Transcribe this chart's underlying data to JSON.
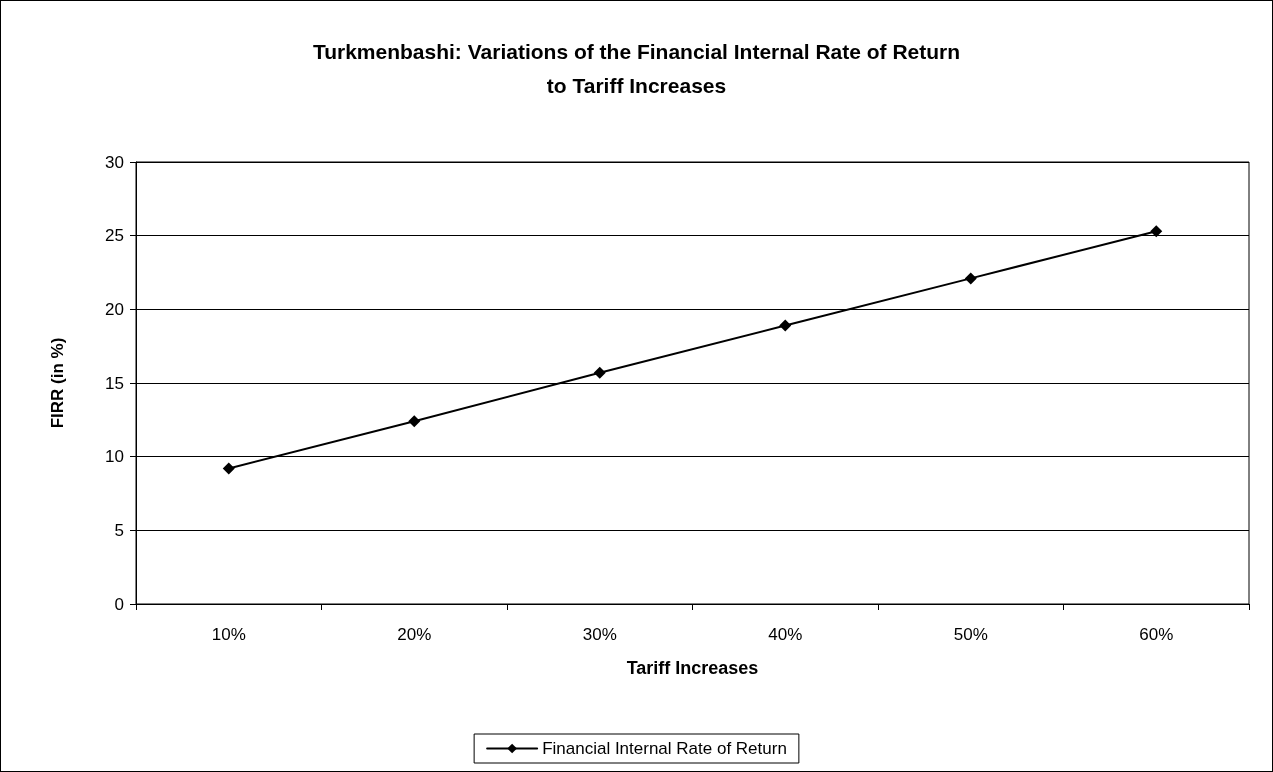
{
  "chart_data": {
    "type": "line",
    "title": "Turkmenbashi: Variations of the Financial Internal Rate of Return\nto Tariff Increases",
    "xlabel": "Tariff Increases",
    "ylabel": "FIRR (in %)",
    "categories": [
      "10%",
      "20%",
      "30%",
      "40%",
      "50%",
      "60%"
    ],
    "series": [
      {
        "name": "Financial Internal Rate of Return",
        "color": "#000000",
        "values": [
          9.2,
          12.4,
          15.7,
          18.9,
          22.1,
          25.3
        ]
      }
    ],
    "ylim": [
      0,
      30
    ],
    "yticks": [
      0,
      5,
      10,
      15,
      20,
      25,
      30
    ],
    "grid": "y",
    "legend": "bottom",
    "marker": "diamond",
    "line_style": "solid"
  }
}
